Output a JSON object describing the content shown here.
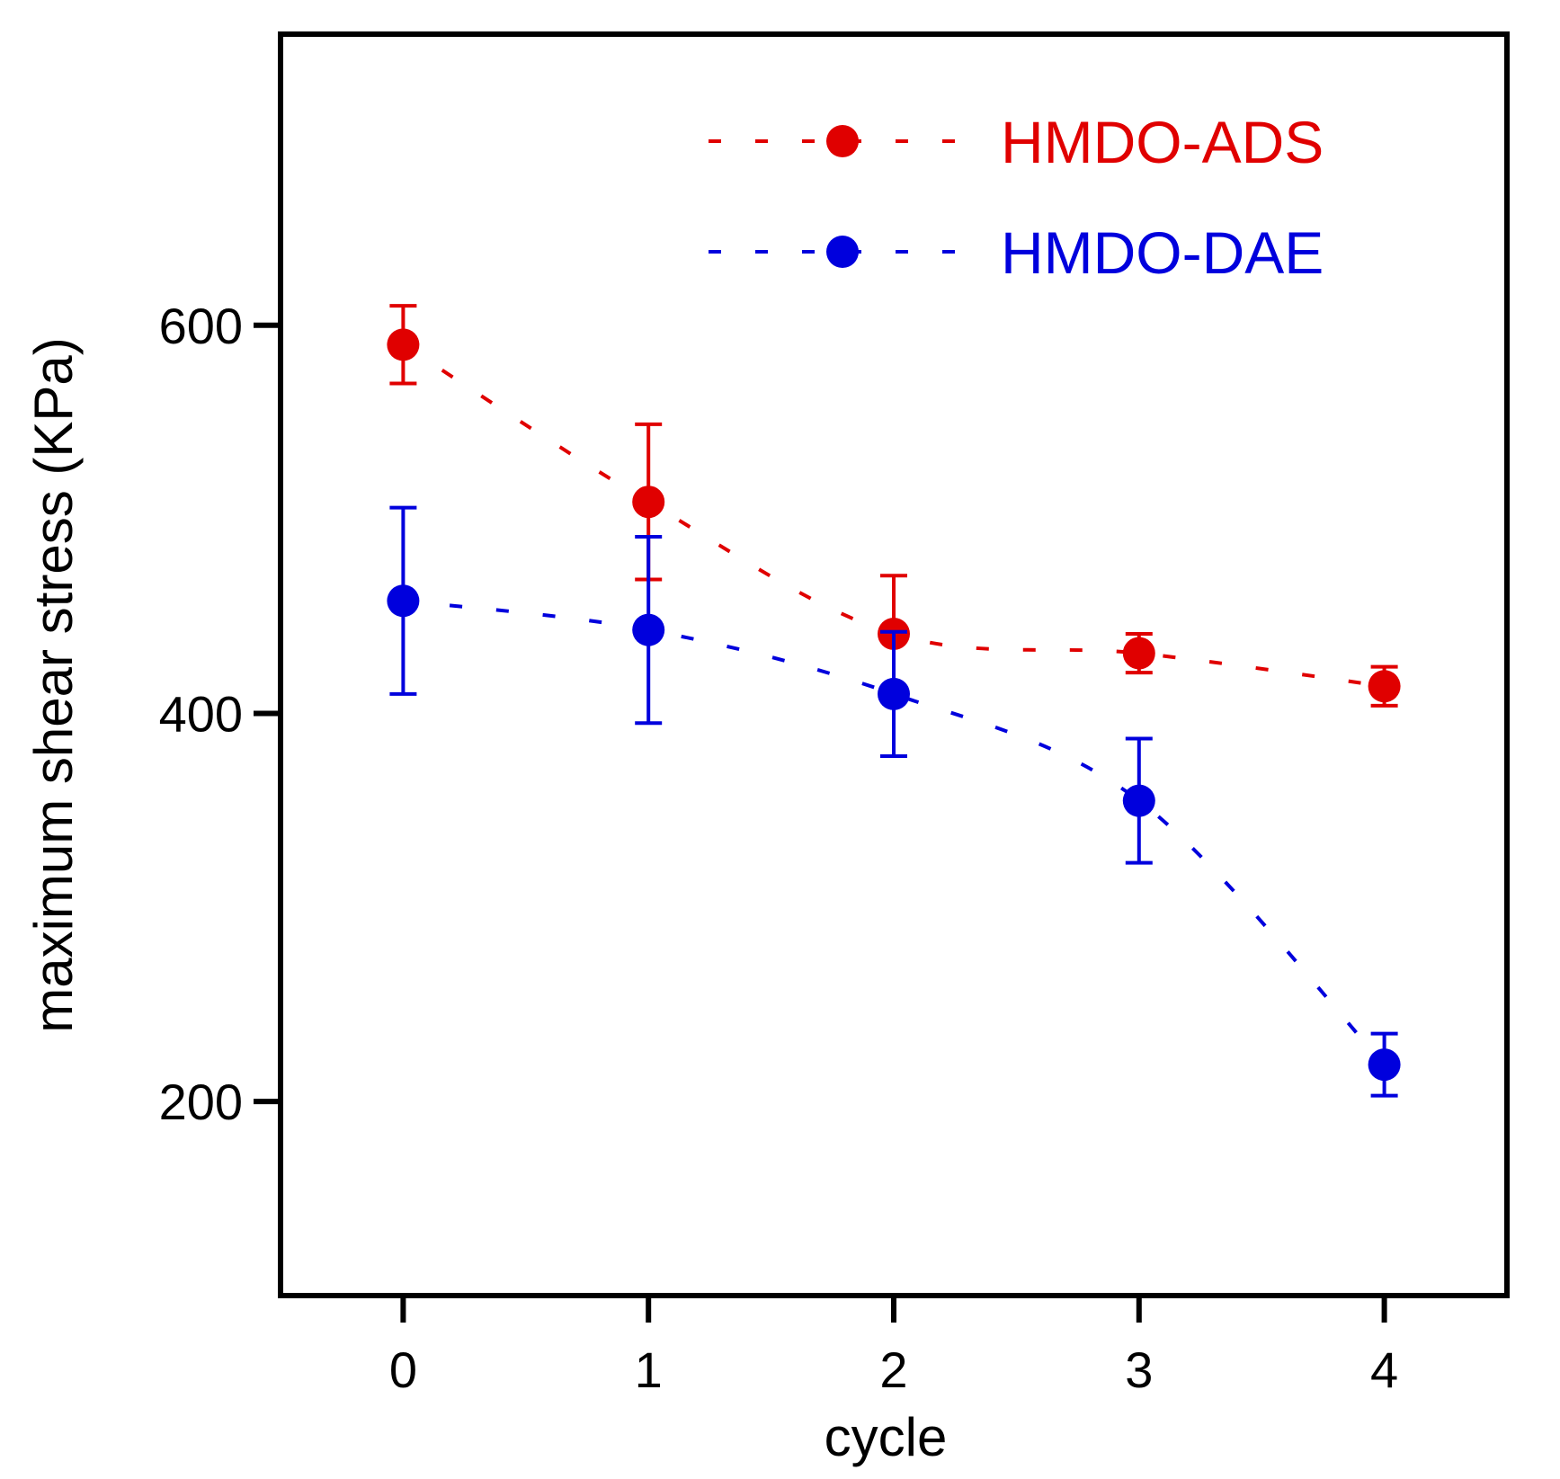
{
  "chart_data": {
    "type": "scatter",
    "title": "",
    "xlabel": "cycle",
    "ylabel": "maximum shear stress (KPa)",
    "x": [
      0,
      1,
      2,
      3,
      4
    ],
    "xticks": [
      0,
      1,
      2,
      3,
      4
    ],
    "xtick_labels": [
      "0",
      "1",
      "2",
      "3",
      "4"
    ],
    "yticks": [
      200,
      400,
      600
    ],
    "ytick_labels": [
      "200",
      "400",
      "600"
    ],
    "xlim": [
      -0.5,
      4.5
    ],
    "ylim": [
      100,
      750
    ],
    "grid": false,
    "legend_position": "top-right",
    "series": [
      {
        "name": "HMDO-ADS",
        "color": "#e00000",
        "values": [
          590,
          509,
          441,
          431,
          414
        ],
        "errors": [
          20,
          40,
          30,
          10,
          10
        ]
      },
      {
        "name": "HMDO-DAE",
        "color": "#0000dd",
        "values": [
          458,
          443,
          410,
          355,
          219
        ],
        "errors": [
          48,
          48,
          32,
          32,
          16
        ]
      }
    ]
  }
}
